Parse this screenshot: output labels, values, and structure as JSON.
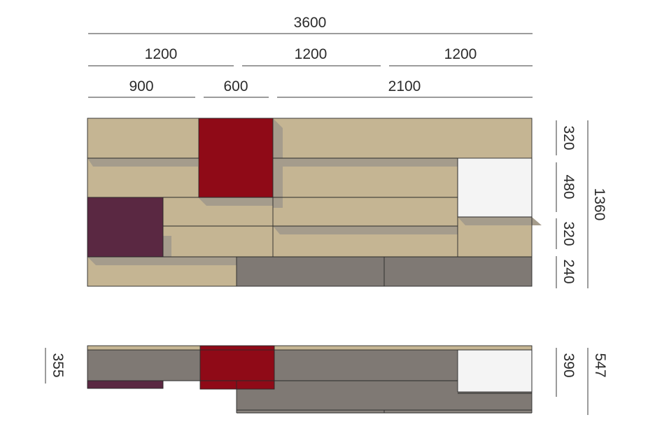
{
  "dimensions": {
    "top": {
      "total": "3600",
      "row2": [
        "1200",
        "1200",
        "1200"
      ],
      "row3": [
        "900",
        "600",
        "2100"
      ]
    },
    "front_right": {
      "segments": [
        "320",
        "480",
        "320",
        "240"
      ],
      "total": "1360"
    },
    "plan": {
      "left": "355",
      "right_inner": "390",
      "right_total": "547"
    }
  },
  "colors": {
    "oak": "#c5b593",
    "red": "#8f0a17",
    "plum": "#5a2842",
    "grey": "#7f7974",
    "white": "#f4f4f4",
    "shadow": "#a59c8c"
  }
}
